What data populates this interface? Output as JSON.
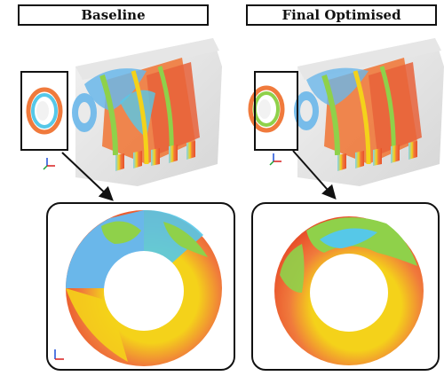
{
  "panels": {
    "left_title": "Baseline",
    "right_title": "Final Optimised"
  },
  "colors": {
    "orange": "#f07a3c",
    "red_orange": "#e8502a",
    "yellow": "#f4d21a",
    "green": "#8fd14a",
    "cyan": "#56c8e8",
    "light_blue": "#6ab7ea",
    "grey_shell": "#d9d9d9"
  },
  "icons": [
    "axis-triad-icon"
  ]
}
